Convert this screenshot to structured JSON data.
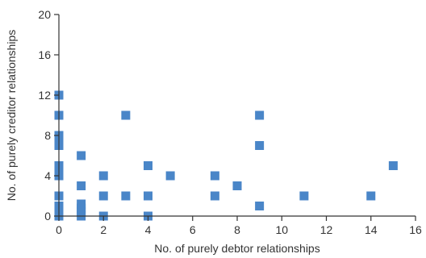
{
  "chart_data": {
    "type": "scatter",
    "xlabel": "No. of purely debtor relationships",
    "ylabel": "No. of purely creditor relationships",
    "xlim": [
      0,
      16
    ],
    "ylim": [
      0,
      20
    ],
    "x_ticks": [
      "0",
      "2",
      "4",
      "6",
      "8",
      "10",
      "12",
      "14",
      "16"
    ],
    "y_ticks": [
      "0",
      "4",
      "8",
      "12",
      "16",
      "20"
    ],
    "grid": false,
    "legend": "none",
    "marker_color": "#4a86c8",
    "points": [
      {
        "x": 0,
        "y": 0
      },
      {
        "x": 0,
        "y": 0.3
      },
      {
        "x": 0,
        "y": 0.6
      },
      {
        "x": 0,
        "y": 1
      },
      {
        "x": 0,
        "y": 2
      },
      {
        "x": 0,
        "y": 4
      },
      {
        "x": 0,
        "y": 4.5
      },
      {
        "x": 0,
        "y": 5
      },
      {
        "x": 0,
        "y": 7
      },
      {
        "x": 0,
        "y": 7.5
      },
      {
        "x": 0,
        "y": 8
      },
      {
        "x": 0,
        "y": 10
      },
      {
        "x": 0,
        "y": 12
      },
      {
        "x": 1,
        "y": 0
      },
      {
        "x": 1,
        "y": 0.4
      },
      {
        "x": 1,
        "y": 0.8
      },
      {
        "x": 1,
        "y": 1.2
      },
      {
        "x": 1,
        "y": 3
      },
      {
        "x": 1,
        "y": 6
      },
      {
        "x": 2,
        "y": 0
      },
      {
        "x": 2,
        "y": 2
      },
      {
        "x": 2,
        "y": 4
      },
      {
        "x": 3,
        "y": 2
      },
      {
        "x": 3,
        "y": 10
      },
      {
        "x": 4,
        "y": 0
      },
      {
        "x": 4,
        "y": 2
      },
      {
        "x": 4,
        "y": 5
      },
      {
        "x": 5,
        "y": 4
      },
      {
        "x": 7,
        "y": 2
      },
      {
        "x": 7,
        "y": 4
      },
      {
        "x": 8,
        "y": 3
      },
      {
        "x": 9,
        "y": 1
      },
      {
        "x": 9,
        "y": 7
      },
      {
        "x": 9,
        "y": 10
      },
      {
        "x": 11,
        "y": 2
      },
      {
        "x": 14,
        "y": 2
      },
      {
        "x": 15,
        "y": 5
      }
    ]
  }
}
